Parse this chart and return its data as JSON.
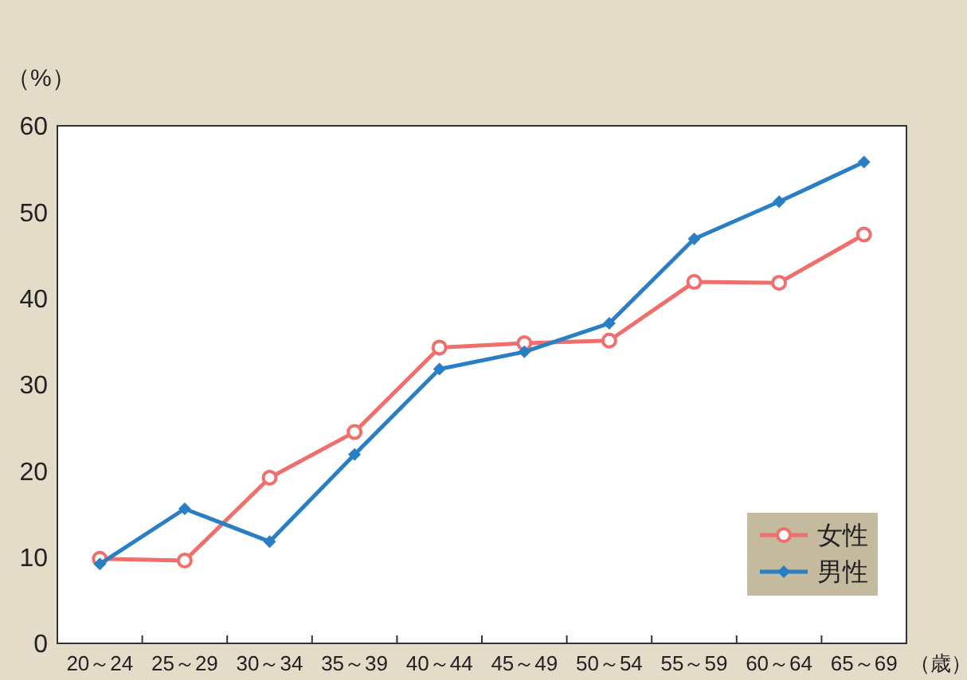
{
  "chart_data": {
    "type": "line",
    "ylabel": "（%）",
    "xlabel": "（歳）",
    "categories": [
      "20～24",
      "25～29",
      "30～34",
      "35～39",
      "40～44",
      "45～49",
      "50～54",
      "55～59",
      "60～64",
      "65～69"
    ],
    "series": [
      {
        "name": "女性",
        "color": "#ef6f6c",
        "marker": "circle",
        "values": [
          9.8,
          9.6,
          19.2,
          24.5,
          34.3,
          34.8,
          35.1,
          41.9,
          41.8,
          47.4
        ]
      },
      {
        "name": "男性",
        "color": "#2a7fc4",
        "marker": "diamond",
        "values": [
          9.2,
          15.6,
          11.8,
          21.9,
          31.8,
          33.8,
          37.1,
          46.9,
          51.2,
          55.8
        ]
      }
    ],
    "ylim": [
      0,
      60
    ],
    "yticks": [
      0,
      10,
      20,
      30,
      40,
      50,
      60
    ],
    "legend": "bottom right",
    "grid": false
  }
}
